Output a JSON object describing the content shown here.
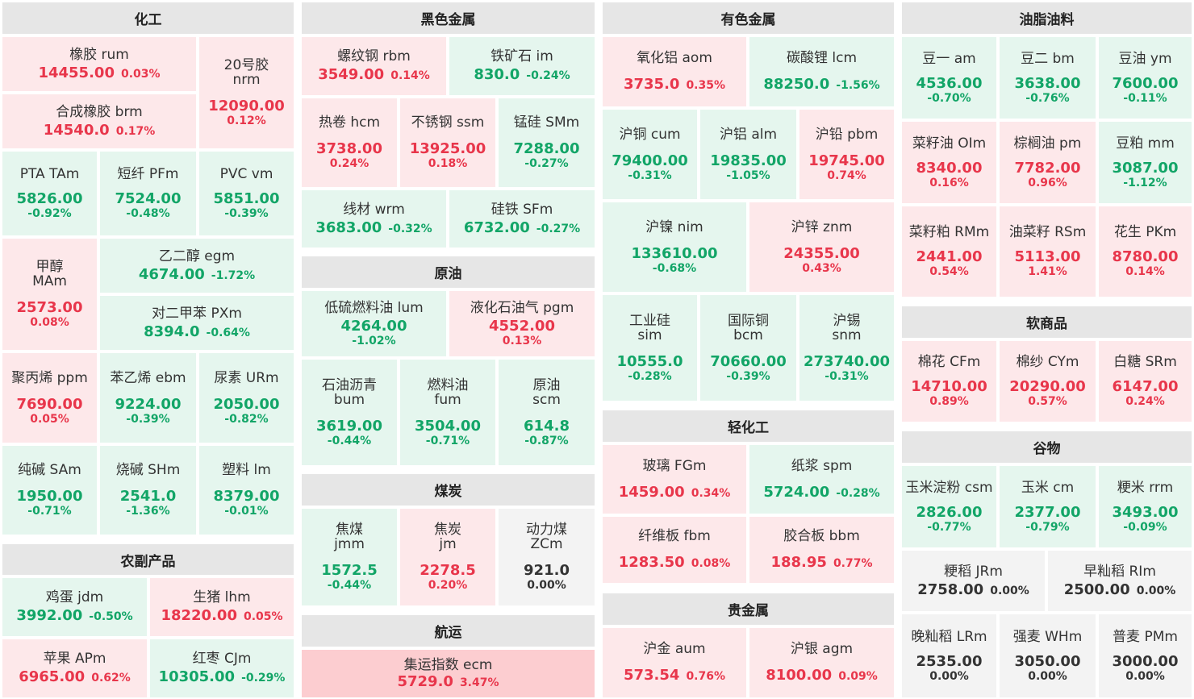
{
  "colors": {
    "up_bg": "#fde8ea",
    "down_bg": "#e5f6ee",
    "flat_bg": "#f3f3f3",
    "strong_up_bg": "#fccdd0",
    "up_text": "#e8364b",
    "down_text": "#12a567",
    "header_bg": "#e6e6e6"
  },
  "sections": {
    "chem": "化工",
    "ferrous": "黑色金属",
    "nonferrous": "有色金属",
    "oils": "油脂油料",
    "crude": "原油",
    "coal": "煤炭",
    "shipping": "航运",
    "agri": "农副产品",
    "light": "轻化工",
    "precious": "贵金属",
    "softs": "软商品",
    "grains": "谷物"
  },
  "tiles": {
    "rum": {
      "name": "橡胶 rum",
      "price": "14455.00",
      "pct": "0.03%"
    },
    "nrm": {
      "name1": "20号胶",
      "name2": "nrm",
      "price": "12090.00",
      "pct": "0.12%"
    },
    "brm": {
      "name": "合成橡胶 brm",
      "price": "14540.0",
      "pct": "0.17%"
    },
    "tam": {
      "name": "PTA TAm",
      "price": "5826.00",
      "pct": "-0.92%"
    },
    "pfm": {
      "name": "短纤 PFm",
      "price": "7524.00",
      "pct": "-0.48%"
    },
    "vm": {
      "name": "PVC vm",
      "price": "5851.00",
      "pct": "-0.39%"
    },
    "mam": {
      "name1": "甲醇",
      "name2": "MAm",
      "price": "2573.00",
      "pct": "0.08%"
    },
    "egm": {
      "name": "乙二醇 egm",
      "price": "4674.00",
      "pct": "-1.72%"
    },
    "pxm": {
      "name": "对二甲苯 PXm",
      "price": "8394.0",
      "pct": "-0.64%"
    },
    "ppm": {
      "name": "聚丙烯 ppm",
      "price": "7690.00",
      "pct": "0.05%"
    },
    "ebm": {
      "name": "苯乙烯 ebm",
      "price": "9224.00",
      "pct": "-0.39%"
    },
    "urm": {
      "name": "尿素 URm",
      "price": "2050.00",
      "pct": "-0.82%"
    },
    "sam": {
      "name": "纯碱 SAm",
      "price": "1950.00",
      "pct": "-0.71%"
    },
    "shm": {
      "name": "烧碱 SHm",
      "price": "2541.0",
      "pct": "-1.36%"
    },
    "lm": {
      "name": "塑料 lm",
      "price": "8379.00",
      "pct": "-0.01%"
    },
    "jdm": {
      "name": "鸡蛋 jdm",
      "price": "3992.00",
      "pct": "-0.50%"
    },
    "lhm": {
      "name": "生猪 lhm",
      "price": "18220.00",
      "pct": "0.05%"
    },
    "apm": {
      "name": "苹果 APm",
      "price": "6965.00",
      "pct": "0.62%"
    },
    "cjm": {
      "name": "红枣 CJm",
      "price": "10305.00",
      "pct": "-0.29%"
    },
    "rbm": {
      "name": "螺纹钢 rbm",
      "price": "3549.00",
      "pct": "0.14%"
    },
    "im": {
      "name": "铁矿石 im",
      "price": "830.0",
      "pct": "-0.24%"
    },
    "hcm": {
      "name": "热卷 hcm",
      "price": "3738.00",
      "pct": "0.24%"
    },
    "ssm": {
      "name": "不锈钢 ssm",
      "price": "13925.00",
      "pct": "0.18%"
    },
    "smm": {
      "name": "锰硅 SMm",
      "price": "7288.00",
      "pct": "-0.27%"
    },
    "wrm": {
      "name": "线材 wrm",
      "price": "3683.00",
      "pct": "-0.32%"
    },
    "sfm": {
      "name": "硅铁 SFm",
      "price": "6732.00",
      "pct": "-0.27%"
    },
    "lum": {
      "name": "低硫燃料油 lum",
      "price": "4264.00",
      "pct": "-1.02%"
    },
    "pgm": {
      "name": "液化石油气 pgm",
      "price": "4552.00",
      "pct": "0.13%"
    },
    "bum": {
      "name1": "石油沥青",
      "name2": "bum",
      "price": "3619.00",
      "pct": "-0.44%"
    },
    "fum": {
      "name1": "燃料油",
      "name2": "fum",
      "price": "3504.00",
      "pct": "-0.71%"
    },
    "scm": {
      "name1": "原油",
      "name2": "scm",
      "price": "614.8",
      "pct": "-0.87%"
    },
    "jmm": {
      "name1": "焦煤",
      "name2": "jmm",
      "price": "1572.5",
      "pct": "-0.44%"
    },
    "jm": {
      "name1": "焦炭",
      "name2": "jm",
      "price": "2278.5",
      "pct": "0.20%"
    },
    "zcm": {
      "name1": "动力煤",
      "name2": "ZCm",
      "price": "921.0",
      "pct": "0.00%"
    },
    "ecm": {
      "name": "集运指数 ecm",
      "price": "5729.0",
      "pct": "3.47%"
    },
    "aom": {
      "name": "氧化铝 aom",
      "price": "3735.0",
      "pct": "0.35%"
    },
    "lcm": {
      "name": "碳酸锂 lcm",
      "price": "88250.0",
      "pct": "-1.56%"
    },
    "cum": {
      "name": "沪铜 cum",
      "price": "79400.00",
      "pct": "-0.31%"
    },
    "alm": {
      "name": "沪铝 alm",
      "price": "19835.00",
      "pct": "-1.05%"
    },
    "pbm": {
      "name": "沪铅 pbm",
      "price": "19745.00",
      "pct": "0.74%"
    },
    "nim": {
      "name": "沪镍 nim",
      "price": "133610.00",
      "pct": "-0.68%"
    },
    "znm": {
      "name": "沪锌 znm",
      "price": "24355.00",
      "pct": "0.43%"
    },
    "sim": {
      "name1": "工业硅",
      "name2": "sim",
      "price": "10555.0",
      "pct": "-0.28%"
    },
    "bcm": {
      "name1": "国际铜",
      "name2": "bcm",
      "price": "70660.00",
      "pct": "-0.39%"
    },
    "snm": {
      "name1": "沪锡",
      "name2": "snm",
      "price": "273740.00",
      "pct": "-0.31%"
    },
    "fgm": {
      "name": "玻璃 FGm",
      "price": "1459.00",
      "pct": "0.34%"
    },
    "spm": {
      "name": "纸浆 spm",
      "price": "5724.00",
      "pct": "-0.28%"
    },
    "fbm": {
      "name": "纤维板 fbm",
      "price": "1283.50",
      "pct": "0.08%"
    },
    "bbm": {
      "name": "胶合板 bbm",
      "price": "188.95",
      "pct": "0.77%"
    },
    "aum": {
      "name": "沪金 aum",
      "price": "573.54",
      "pct": "0.76%"
    },
    "agm": {
      "name": "沪银 agm",
      "price": "8100.00",
      "pct": "0.09%"
    },
    "am": {
      "name": "豆一 am",
      "price": "4536.00",
      "pct": "-0.70%"
    },
    "bm": {
      "name": "豆二 bm",
      "price": "3638.00",
      "pct": "-0.76%"
    },
    "ym": {
      "name": "豆油 ym",
      "price": "7600.00",
      "pct": "-0.11%"
    },
    "oim": {
      "name": "菜籽油 OIm",
      "price": "8340.00",
      "pct": "0.16%"
    },
    "pm": {
      "name": "棕榈油 pm",
      "price": "7782.00",
      "pct": "0.96%"
    },
    "mm": {
      "name": "豆粕 mm",
      "price": "3087.00",
      "pct": "-1.12%"
    },
    "rmm": {
      "name": "菜籽粕 RMm",
      "price": "2441.00",
      "pct": "0.54%"
    },
    "rsm": {
      "name": "油菜籽 RSm",
      "price": "5113.00",
      "pct": "1.41%"
    },
    "pkm": {
      "name": "花生 PKm",
      "price": "8780.00",
      "pct": "0.14%"
    },
    "cfm": {
      "name": "棉花 CFm",
      "price": "14710.00",
      "pct": "0.89%"
    },
    "cym": {
      "name": "棉纱 CYm",
      "price": "20290.00",
      "pct": "0.57%"
    },
    "srm": {
      "name": "白糖 SRm",
      "price": "6147.00",
      "pct": "0.24%"
    },
    "csm": {
      "name": "玉米淀粉 csm",
      "price": "2826.00",
      "pct": "-0.77%"
    },
    "cm": {
      "name": "玉米 cm",
      "price": "2377.00",
      "pct": "-0.79%"
    },
    "rrm": {
      "name": "粳米 rrm",
      "price": "3493.00",
      "pct": "-0.09%"
    },
    "jrm": {
      "name": "粳稻 JRm",
      "price": "2758.00",
      "pct": "0.00%"
    },
    "rim": {
      "name": "早籼稻 RIm",
      "price": "2500.00",
      "pct": "0.00%"
    },
    "lrm": {
      "name": "晚籼稻 LRm",
      "price": "2535.00",
      "pct": "0.00%"
    },
    "whm": {
      "name": "强麦 WHm",
      "price": "3050.00",
      "pct": "0.00%"
    },
    "pmm": {
      "name": "普麦 PMm",
      "price": "3000.00",
      "pct": "0.00%"
    }
  }
}
